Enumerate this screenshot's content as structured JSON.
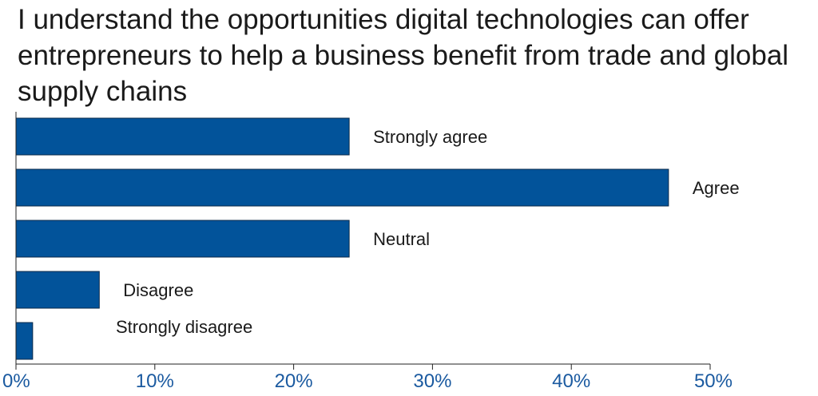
{
  "chart_data": {
    "type": "bar",
    "orientation": "horizontal",
    "title": "I understand the opportunities digital technologies can offer entrepreneurs to help a business benefit from trade and global supply chains",
    "categories": [
      "Strongly agree",
      "Agree",
      "Neutral",
      "Disagree",
      "Strongly disagree"
    ],
    "values": [
      24,
      47,
      24,
      6,
      1.2
    ],
    "xlim": [
      0,
      50
    ],
    "x_ticks": [
      0,
      10,
      20,
      30,
      40,
      50
    ],
    "x_tick_labels": [
      "0%",
      "10%",
      "20%",
      "30%",
      "40%",
      "50%"
    ],
    "bar_color": "#02539a",
    "tick_label_color": "#1b5aa0",
    "grid": false,
    "legend": "none"
  }
}
